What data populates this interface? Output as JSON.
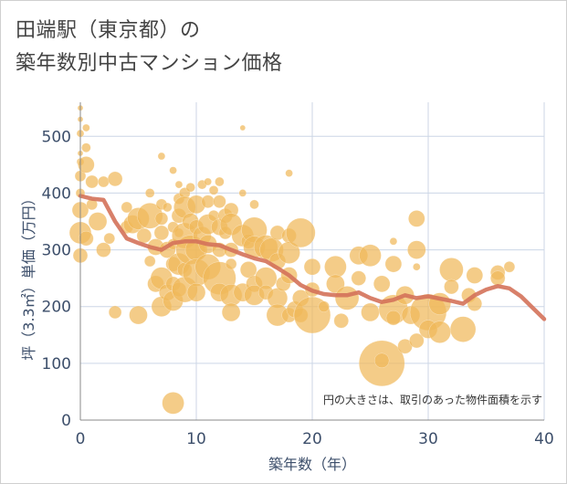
{
  "title_line1": "田端駅（東京都）の",
  "title_line2": "築年数別中古マンション価格",
  "chart_data": {
    "type": "scatter",
    "xlabel": "築年数（年）",
    "ylabel": "坪（3.3㎡）単価（万円）",
    "xlim": [
      0,
      40
    ],
    "ylim": [
      0,
      560
    ],
    "xticks": [
      0,
      10,
      20,
      30,
      40
    ],
    "yticks": [
      0,
      100,
      200,
      300,
      400,
      500
    ],
    "grid": true,
    "note": "円の大きさは、取引のあった物件面積を示す",
    "colors": {
      "bubble": "#f0b85a",
      "line": "#d4725a",
      "grid": "#ccd6e6",
      "axis": "#888888"
    },
    "series": [
      {
        "kind": "bubble",
        "points": [
          {
            "x": 0,
            "y": 550,
            "s": 3
          },
          {
            "x": 0,
            "y": 530,
            "s": 3
          },
          {
            "x": 0,
            "y": 505,
            "s": 4
          },
          {
            "x": 0,
            "y": 470,
            "s": 3
          },
          {
            "x": 0,
            "y": 455,
            "s": 4
          },
          {
            "x": 0,
            "y": 430,
            "s": 6
          },
          {
            "x": 0,
            "y": 400,
            "s": 5
          },
          {
            "x": 0,
            "y": 370,
            "s": 9
          },
          {
            "x": 0,
            "y": 330,
            "s": 12
          },
          {
            "x": 0,
            "y": 290,
            "s": 8
          },
          {
            "x": 0.5,
            "y": 515,
            "s": 4
          },
          {
            "x": 0.5,
            "y": 480,
            "s": 5
          },
          {
            "x": 0.5,
            "y": 450,
            "s": 9
          },
          {
            "x": 0.5,
            "y": 320,
            "s": 8
          },
          {
            "x": 1,
            "y": 420,
            "s": 7
          },
          {
            "x": 1,
            "y": 380,
            "s": 6
          },
          {
            "x": 1.5,
            "y": 350,
            "s": 10
          },
          {
            "x": 2,
            "y": 420,
            "s": 6
          },
          {
            "x": 2,
            "y": 300,
            "s": 8
          },
          {
            "x": 2.5,
            "y": 320,
            "s": 6
          },
          {
            "x": 3,
            "y": 425,
            "s": 8
          },
          {
            "x": 3,
            "y": 190,
            "s": 7
          },
          {
            "x": 4,
            "y": 375,
            "s": 6
          },
          {
            "x": 4,
            "y": 340,
            "s": 7
          },
          {
            "x": 4.5,
            "y": 345,
            "s": 10
          },
          {
            "x": 5,
            "y": 355,
            "s": 12
          },
          {
            "x": 5,
            "y": 185,
            "s": 10
          },
          {
            "x": 5.5,
            "y": 325,
            "s": 8
          },
          {
            "x": 6,
            "y": 400,
            "s": 5
          },
          {
            "x": 6,
            "y": 360,
            "s": 14
          },
          {
            "x": 6,
            "y": 280,
            "s": 6
          },
          {
            "x": 6.5,
            "y": 305,
            "s": 9
          },
          {
            "x": 6.5,
            "y": 240,
            "s": 9
          },
          {
            "x": 7,
            "y": 465,
            "s": 4
          },
          {
            "x": 7,
            "y": 380,
            "s": 6
          },
          {
            "x": 7,
            "y": 355,
            "s": 7
          },
          {
            "x": 7,
            "y": 330,
            "s": 8
          },
          {
            "x": 7,
            "y": 250,
            "s": 12
          },
          {
            "x": 7,
            "y": 200,
            "s": 11
          },
          {
            "x": 7.5,
            "y": 375,
            "s": 5
          },
          {
            "x": 7.5,
            "y": 300,
            "s": 9
          },
          {
            "x": 7.5,
            "y": 225,
            "s": 9
          },
          {
            "x": 8,
            "y": 440,
            "s": 4
          },
          {
            "x": 8,
            "y": 340,
            "s": 6
          },
          {
            "x": 8,
            "y": 310,
            "s": 6
          },
          {
            "x": 8,
            "y": 275,
            "s": 8
          },
          {
            "x": 8,
            "y": 240,
            "s": 8
          },
          {
            "x": 8,
            "y": 210,
            "s": 11
          },
          {
            "x": 8,
            "y": 30,
            "s": 12
          },
          {
            "x": 8.5,
            "y": 415,
            "s": 4
          },
          {
            "x": 8.5,
            "y": 390,
            "s": 6
          },
          {
            "x": 8.5,
            "y": 360,
            "s": 8
          },
          {
            "x": 8.5,
            "y": 330,
            "s": 5
          },
          {
            "x": 8.5,
            "y": 275,
            "s": 12
          },
          {
            "x": 8.5,
            "y": 230,
            "s": 8
          },
          {
            "x": 9,
            "y": 400,
            "s": 6
          },
          {
            "x": 9,
            "y": 375,
            "s": 12
          },
          {
            "x": 9,
            "y": 325,
            "s": 14
          },
          {
            "x": 9,
            "y": 265,
            "s": 8
          },
          {
            "x": 9,
            "y": 230,
            "s": 14
          },
          {
            "x": 9.5,
            "y": 410,
            "s": 5
          },
          {
            "x": 9.5,
            "y": 350,
            "s": 9
          },
          {
            "x": 9.5,
            "y": 300,
            "s": 16
          },
          {
            "x": 10,
            "y": 380,
            "s": 10
          },
          {
            "x": 10,
            "y": 340,
            "s": 8
          },
          {
            "x": 10,
            "y": 300,
            "s": 12
          },
          {
            "x": 10,
            "y": 260,
            "s": 15
          },
          {
            "x": 10,
            "y": 225,
            "s": 10
          },
          {
            "x": 10.5,
            "y": 415,
            "s": 5
          },
          {
            "x": 10.5,
            "y": 325,
            "s": 10
          },
          {
            "x": 11,
            "y": 420,
            "s": 4
          },
          {
            "x": 11,
            "y": 385,
            "s": 7
          },
          {
            "x": 11,
            "y": 345,
            "s": 11
          },
          {
            "x": 11,
            "y": 310,
            "s": 10
          },
          {
            "x": 11,
            "y": 270,
            "s": 14
          },
          {
            "x": 11.5,
            "y": 405,
            "s": 5
          },
          {
            "x": 11.5,
            "y": 360,
            "s": 6
          },
          {
            "x": 12,
            "y": 420,
            "s": 5
          },
          {
            "x": 12,
            "y": 385,
            "s": 7
          },
          {
            "x": 12,
            "y": 340,
            "s": 9
          },
          {
            "x": 12,
            "y": 300,
            "s": 8
          },
          {
            "x": 12,
            "y": 250,
            "s": 18
          },
          {
            "x": 12,
            "y": 225,
            "s": 10
          },
          {
            "x": 12.5,
            "y": 360,
            "s": 8
          },
          {
            "x": 12.5,
            "y": 330,
            "s": 7
          },
          {
            "x": 13,
            "y": 370,
            "s": 8
          },
          {
            "x": 13,
            "y": 345,
            "s": 12
          },
          {
            "x": 13,
            "y": 300,
            "s": 8
          },
          {
            "x": 13,
            "y": 275,
            "s": 6
          },
          {
            "x": 13,
            "y": 220,
            "s": 12
          },
          {
            "x": 13,
            "y": 190,
            "s": 10
          },
          {
            "x": 14,
            "y": 515,
            "s": 3
          },
          {
            "x": 14,
            "y": 400,
            "s": 4
          },
          {
            "x": 14,
            "y": 325,
            "s": 12
          },
          {
            "x": 14,
            "y": 225,
            "s": 10
          },
          {
            "x": 14.5,
            "y": 315,
            "s": 8
          },
          {
            "x": 14.5,
            "y": 265,
            "s": 9
          },
          {
            "x": 15,
            "y": 380,
            "s": 5
          },
          {
            "x": 15,
            "y": 335,
            "s": 14
          },
          {
            "x": 15,
            "y": 305,
            "s": 12
          },
          {
            "x": 15,
            "y": 240,
            "s": 9
          },
          {
            "x": 15,
            "y": 220,
            "s": 11
          },
          {
            "x": 16,
            "y": 305,
            "s": 13
          },
          {
            "x": 16,
            "y": 250,
            "s": 12
          },
          {
            "x": 16,
            "y": 225,
            "s": 8
          },
          {
            "x": 16.5,
            "y": 300,
            "s": 13
          },
          {
            "x": 17,
            "y": 330,
            "s": 8
          },
          {
            "x": 17,
            "y": 280,
            "s": 9
          },
          {
            "x": 17,
            "y": 215,
            "s": 11
          },
          {
            "x": 17,
            "y": 185,
            "s": 12
          },
          {
            "x": 17.5,
            "y": 240,
            "s": 8
          },
          {
            "x": 18,
            "y": 435,
            "s": 4
          },
          {
            "x": 18,
            "y": 325,
            "s": 8
          },
          {
            "x": 18,
            "y": 295,
            "s": 12
          },
          {
            "x": 18,
            "y": 255,
            "s": 9
          },
          {
            "x": 18,
            "y": 185,
            "s": 8
          },
          {
            "x": 18.5,
            "y": 195,
            "s": 9
          },
          {
            "x": 19,
            "y": 330,
            "s": 16
          },
          {
            "x": 19,
            "y": 215,
            "s": 9
          },
          {
            "x": 19,
            "y": 185,
            "s": 8
          },
          {
            "x": 20,
            "y": 270,
            "s": 9
          },
          {
            "x": 20,
            "y": 230,
            "s": 8
          },
          {
            "x": 20,
            "y": 185,
            "s": 20
          },
          {
            "x": 21,
            "y": 200,
            "s": 6
          },
          {
            "x": 22,
            "y": 270,
            "s": 12
          },
          {
            "x": 22,
            "y": 240,
            "s": 10
          },
          {
            "x": 22.5,
            "y": 175,
            "s": 8
          },
          {
            "x": 23,
            "y": 215,
            "s": 13
          },
          {
            "x": 24,
            "y": 290,
            "s": 10
          },
          {
            "x": 24,
            "y": 250,
            "s": 8
          },
          {
            "x": 25,
            "y": 290,
            "s": 12
          },
          {
            "x": 25,
            "y": 190,
            "s": 10
          },
          {
            "x": 26,
            "y": 240,
            "s": 9
          },
          {
            "x": 26,
            "y": 100,
            "s": 25
          },
          {
            "x": 26,
            "y": 105,
            "s": 8
          },
          {
            "x": 27,
            "y": 315,
            "s": 4
          },
          {
            "x": 27,
            "y": 275,
            "s": 9
          },
          {
            "x": 27,
            "y": 195,
            "s": 16
          },
          {
            "x": 27,
            "y": 180,
            "s": 8
          },
          {
            "x": 28,
            "y": 220,
            "s": 10
          },
          {
            "x": 28,
            "y": 130,
            "s": 8
          },
          {
            "x": 28.5,
            "y": 185,
            "s": 10
          },
          {
            "x": 29,
            "y": 355,
            "s": 9
          },
          {
            "x": 29,
            "y": 300,
            "s": 10
          },
          {
            "x": 29,
            "y": 270,
            "s": 4
          },
          {
            "x": 29,
            "y": 140,
            "s": 8
          },
          {
            "x": 30,
            "y": 190,
            "s": 20
          },
          {
            "x": 30,
            "y": 160,
            "s": 10
          },
          {
            "x": 31,
            "y": 205,
            "s": 12
          },
          {
            "x": 31,
            "y": 155,
            "s": 12
          },
          {
            "x": 32,
            "y": 265,
            "s": 13
          },
          {
            "x": 32,
            "y": 235,
            "s": 8
          },
          {
            "x": 33,
            "y": 160,
            "s": 14
          },
          {
            "x": 33.5,
            "y": 220,
            "s": 8
          },
          {
            "x": 34,
            "y": 255,
            "s": 9
          },
          {
            "x": 34,
            "y": 205,
            "s": 8
          },
          {
            "x": 36,
            "y": 260,
            "s": 8
          },
          {
            "x": 36,
            "y": 250,
            "s": 8
          },
          {
            "x": 37,
            "y": 270,
            "s": 6
          }
        ]
      },
      {
        "kind": "line",
        "x": [
          0,
          1,
          2,
          3,
          4,
          5,
          6,
          7,
          8,
          9,
          10,
          11,
          12,
          13,
          14,
          15,
          16,
          17,
          18,
          19,
          20,
          21,
          22,
          23,
          24,
          25,
          26,
          27,
          28,
          29,
          30,
          31,
          32,
          33,
          34,
          35,
          36,
          37,
          38,
          39,
          40
        ],
        "y": [
          395,
          390,
          388,
          350,
          320,
          312,
          305,
          300,
          312,
          315,
          315,
          310,
          308,
          300,
          292,
          285,
          280,
          268,
          255,
          238,
          228,
          222,
          220,
          220,
          225,
          215,
          208,
          212,
          220,
          215,
          218,
          214,
          210,
          205,
          220,
          230,
          236,
          232,
          218,
          198,
          178
        ]
      }
    ]
  }
}
